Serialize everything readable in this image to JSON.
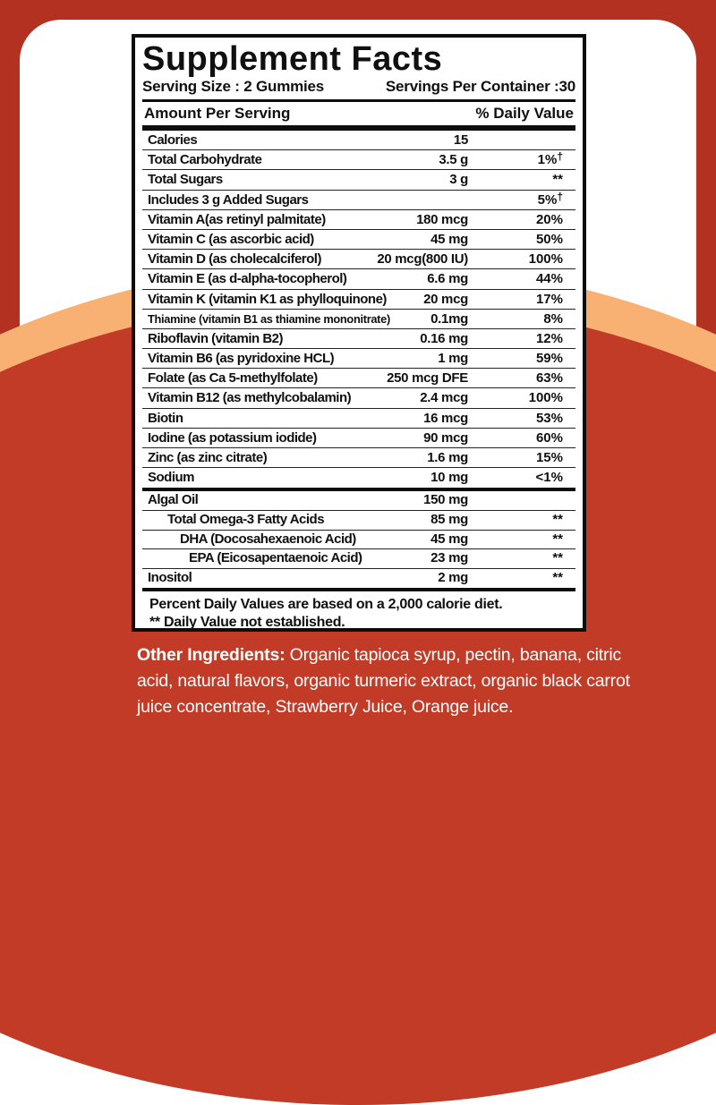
{
  "colors": {
    "base_red": "#b23120",
    "dome_red": "#c13b27",
    "band_orange": "#f8b172",
    "card_white": "#ffffff",
    "text_black": "#101010",
    "bottom_text_white": "#ffffff"
  },
  "label": {
    "title": "Supplement Facts",
    "serving_size": "Serving Size : 2 Gummies",
    "servings_per_container": "Servings Per Container :30",
    "column_headers": {
      "left": "Amount Per Serving",
      "right": "% Daily Value"
    },
    "rows": [
      {
        "name": "Calories",
        "amount": "15",
        "dv": "",
        "sup": "",
        "level": 0
      },
      {
        "name": "Total Carbohydrate",
        "amount": "3.5 g",
        "dv": "1%",
        "sup": "†",
        "level": 0
      },
      {
        "name": "Total Sugars",
        "amount": "3 g",
        "dv": "**",
        "sup": "",
        "level": 0
      },
      {
        "name": "Includes 3 g Added Sugars",
        "amount": "",
        "dv": "5%",
        "sup": "†",
        "level": 0
      },
      {
        "name": "Vitamin A(as retinyl palmitate)",
        "amount": "180 mcg",
        "dv": "20%",
        "sup": "",
        "level": 0
      },
      {
        "name": "Vitamin C (as ascorbic acid)",
        "amount": "45 mg",
        "dv": "50%",
        "sup": "",
        "level": 0
      },
      {
        "name": "Vitamin D (as cholecalciferol)",
        "amount": "20 mcg(800 IU)",
        "dv": "100%",
        "sup": "",
        "level": 0
      },
      {
        "name": "Vitamin E (as d-alpha-tocopherol)",
        "amount": "6.6 mg",
        "dv": "44%",
        "sup": "",
        "level": 0
      },
      {
        "name": "Vitamin K (vitamin K1 as phylloquinone)",
        "amount": "20 mcg",
        "dv": "17%",
        "sup": "",
        "level": 0
      },
      {
        "name": "Thiamine (vitamin B1 as thiamine mononitrate)",
        "amount": "0.1mg",
        "dv": "8%",
        "sup": "",
        "level": 0
      },
      {
        "name": "Riboflavin (vitamin B2)",
        "amount": "0.16 mg",
        "dv": "12%",
        "sup": "",
        "level": 0
      },
      {
        "name": "Vitamin B6 (as pyridoxine HCL)",
        "amount": "1 mg",
        "dv": "59%",
        "sup": "",
        "level": 0
      },
      {
        "name": "Folate (as Ca 5-methylfolate)",
        "amount": "250 mcg DFE",
        "dv": "63%",
        "sup": "",
        "level": 0
      },
      {
        "name": "Vitamin B12 (as methylcobalamin)",
        "amount": "2.4 mcg",
        "dv": "100%",
        "sup": "",
        "level": 0
      },
      {
        "name": "Biotin",
        "amount": "16 mcg",
        "dv": "53%",
        "sup": "",
        "level": 0
      },
      {
        "name": "Iodine (as potassium iodide)",
        "amount": "90 mcg",
        "dv": "60%",
        "sup": "",
        "level": 0
      },
      {
        "name": "Zinc (as zinc citrate)",
        "amount": "1.6 mg",
        "dv": "15%",
        "sup": "",
        "level": 0
      },
      {
        "name": "Sodium",
        "amount": "10 mg",
        "dv": "<1%",
        "sup": "",
        "level": 0
      }
    ],
    "rows2": [
      {
        "name": "Algal Oil",
        "amount": "150 mg",
        "dv": "",
        "sup": "",
        "level": 0
      },
      {
        "name": "Total Omega-3 Fatty Acids",
        "amount": "85 mg",
        "dv": "**",
        "sup": "",
        "level": 1
      },
      {
        "name": "DHA (Docosahexaenoic Acid)",
        "amount": "45 mg",
        "dv": "**",
        "sup": "",
        "level": 2
      },
      {
        "name": "EPA (Eicosapentaenoic Acid)",
        "amount": "23 mg",
        "dv": "**",
        "sup": "",
        "level": 3
      },
      {
        "name": "Inositol",
        "amount": "2 mg",
        "dv": "**",
        "sup": "",
        "level": 0
      }
    ],
    "footnotes": [
      "Percent Daily Values are based on a 2,000 calorie diet.",
      "** Daily Value not established."
    ]
  },
  "other_ingredients": {
    "label": "Other Ingredients:",
    "text": " Organic tapioca syrup, pectin, banana, citric acid, natural flavors, organic turmeric extract, organic black carrot juice concentrate, Strawberry Juice, Orange juice."
  }
}
